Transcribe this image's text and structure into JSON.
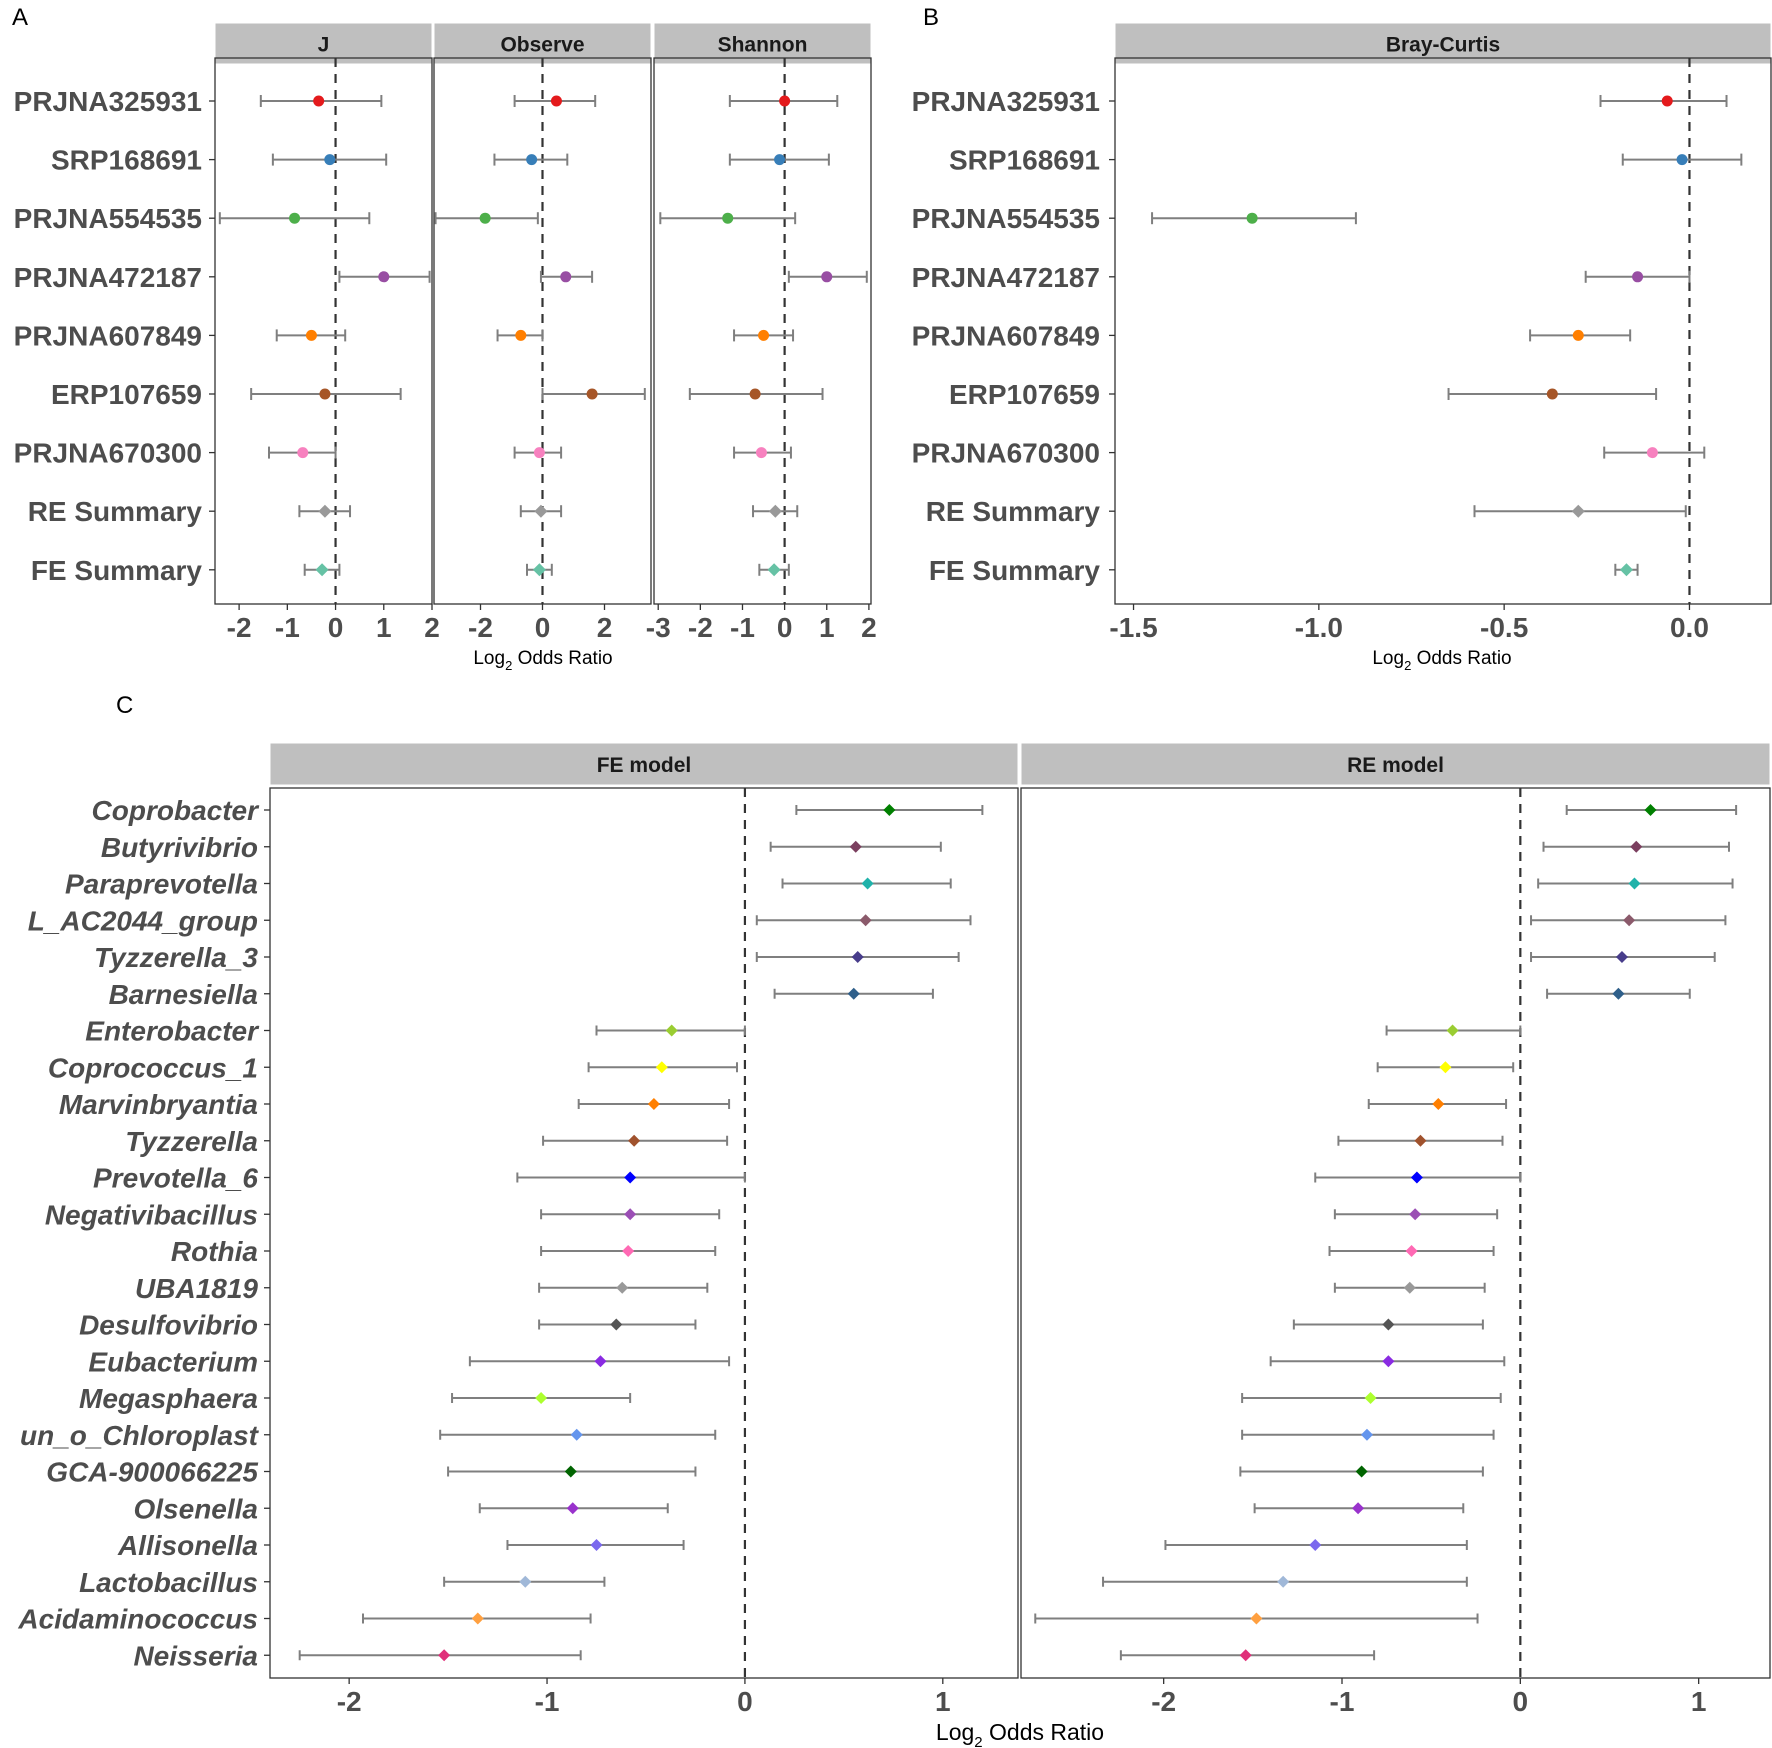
{
  "labels": {
    "panel_a": "A",
    "panel_b": "B",
    "panel_c": "C"
  },
  "xaxis": {
    "title_prefix": "Log",
    "title_sub": "2",
    "title_suffix": " Odds Ratio"
  },
  "chart_data": [
    {
      "type": "forest",
      "panel": "A",
      "facet": "J",
      "xlim": [
        -2.5,
        2
      ],
      "ticks": [
        -2,
        -1,
        0,
        1,
        2
      ],
      "studies": [
        "PRJNA325931",
        "SRP168691",
        "PRJNA554535",
        "PRJNA472187",
        "PRJNA607849",
        "ERP107659",
        "PRJNA670300",
        "RE Summary",
        "FE Summary"
      ],
      "estimate": [
        -0.35,
        -0.12,
        -0.85,
        1.0,
        -0.5,
        -0.22,
        -0.68,
        -0.22,
        -0.28
      ],
      "lower": [
        -1.55,
        -1.3,
        -2.4,
        0.08,
        -1.22,
        -1.75,
        -1.38,
        -0.75,
        -0.64
      ],
      "upper": [
        0.95,
        1.05,
        0.7,
        1.95,
        0.2,
        1.35,
        0.0,
        0.3,
        0.08
      ],
      "colors": [
        "#e41a1c",
        "#377eb8",
        "#4daf4a",
        "#984ea3",
        "#ff7f00",
        "#a65628",
        "#f781bf",
        "#999999",
        "#66c2a5"
      ],
      "shapes": [
        "circle",
        "circle",
        "circle",
        "circle",
        "circle",
        "circle",
        "circle",
        "diamond",
        "diamond"
      ]
    },
    {
      "type": "forest",
      "panel": "A",
      "facet": "Observe",
      "xlim": [
        -3.5,
        3.5
      ],
      "ticks": [
        -2,
        0,
        2
      ],
      "studies": [
        "PRJNA325931",
        "SRP168691",
        "PRJNA554535",
        "PRJNA472187",
        "PRJNA607849",
        "ERP107659",
        "PRJNA670300",
        "RE Summary",
        "FE Summary"
      ],
      "estimate": [
        0.45,
        -0.35,
        -1.85,
        0.75,
        -0.7,
        1.6,
        -0.1,
        -0.05,
        -0.1
      ],
      "lower": [
        -0.9,
        -1.55,
        -3.45,
        -0.05,
        -1.45,
        0.0,
        -0.9,
        -0.7,
        -0.5
      ],
      "upper": [
        1.7,
        0.8,
        -0.15,
        1.6,
        0.0,
        3.3,
        0.6,
        0.6,
        0.3
      ],
      "colors": [
        "#e41a1c",
        "#377eb8",
        "#4daf4a",
        "#984ea3",
        "#ff7f00",
        "#a65628",
        "#f781bf",
        "#999999",
        "#66c2a5"
      ],
      "shapes": [
        "circle",
        "circle",
        "circle",
        "circle",
        "circle",
        "circle",
        "circle",
        "diamond",
        "diamond"
      ]
    },
    {
      "type": "forest",
      "panel": "A",
      "facet": "Shannon",
      "xlim": [
        -3.1,
        2.05
      ],
      "ticks": [
        -3,
        -2,
        -1,
        0,
        1,
        2
      ],
      "studies": [
        "PRJNA325931",
        "SRP168691",
        "PRJNA554535",
        "PRJNA472187",
        "PRJNA607849",
        "ERP107659",
        "PRJNA670300",
        "RE Summary",
        "FE Summary"
      ],
      "estimate": [
        0.0,
        -0.12,
        -1.35,
        1.0,
        -0.5,
        -0.7,
        -0.55,
        -0.22,
        -0.25
      ],
      "lower": [
        -1.3,
        -1.3,
        -2.95,
        0.1,
        -1.2,
        -2.25,
        -1.2,
        -0.75,
        -0.6
      ],
      "upper": [
        1.25,
        1.05,
        0.25,
        1.95,
        0.2,
        0.9,
        0.15,
        0.3,
        0.1
      ],
      "colors": [
        "#e41a1c",
        "#377eb8",
        "#4daf4a",
        "#984ea3",
        "#ff7f00",
        "#a65628",
        "#f781bf",
        "#999999",
        "#66c2a5"
      ],
      "shapes": [
        "circle",
        "circle",
        "circle",
        "circle",
        "circle",
        "circle",
        "circle",
        "diamond",
        "diamond"
      ]
    },
    {
      "type": "forest",
      "panel": "B",
      "facet": "Bray-Curtis",
      "xlim": [
        -1.55,
        0.22
      ],
      "ticks": [
        -1.5,
        -1.0,
        -0.5,
        0.0
      ],
      "tick_labels": [
        "-1.5",
        "-1.0",
        "-0.5",
        "0.0"
      ],
      "studies": [
        "PRJNA325931",
        "SRP168691",
        "PRJNA554535",
        "PRJNA472187",
        "PRJNA607849",
        "ERP107659",
        "PRJNA670300",
        "RE Summary",
        "FE Summary"
      ],
      "estimate": [
        -0.06,
        -0.02,
        -1.18,
        -0.14,
        -0.3,
        -0.37,
        -0.1,
        -0.3,
        -0.17
      ],
      "lower": [
        -0.24,
        -0.18,
        -1.45,
        -0.28,
        -0.43,
        -0.65,
        -0.23,
        -0.58,
        -0.2
      ],
      "upper": [
        0.1,
        0.14,
        -0.9,
        0.0,
        -0.16,
        -0.09,
        0.04,
        -0.01,
        -0.14
      ],
      "colors": [
        "#e41a1c",
        "#377eb8",
        "#4daf4a",
        "#984ea3",
        "#ff7f00",
        "#a65628",
        "#f781bf",
        "#999999",
        "#66c2a5"
      ],
      "shapes": [
        "circle",
        "circle",
        "circle",
        "circle",
        "circle",
        "circle",
        "circle",
        "diamond",
        "diamond"
      ]
    },
    {
      "type": "forest",
      "panel": "C",
      "facet": "FE model",
      "xlim": [
        -2.4,
        1.38
      ],
      "ticks": [
        -2,
        -1,
        0,
        1
      ],
      "genera": [
        "Coprobacter",
        "Butyrivibrio",
        "Paraprevotella",
        "L_AC2044_group",
        "Tyzzerella_3",
        "Barnesiella",
        "Enterobacter",
        "Coprococcus_1",
        "Marvinbryantia",
        "Tyzzerella",
        "Prevotella_6",
        "Negativibacillus",
        "Rothia",
        "UBA1819",
        "Desulfovibrio",
        "Eubacterium",
        "Megasphaera",
        "un_o_Chloroplast",
        "GCA-900066225",
        "Olsenella",
        "Allisonella",
        "Lactobacillus",
        "Acidaminococcus",
        "Neisseria"
      ],
      "estimate": [
        0.73,
        0.56,
        0.62,
        0.61,
        0.57,
        0.55,
        -0.37,
        -0.42,
        -0.46,
        -0.56,
        -0.58,
        -0.58,
        -0.59,
        -0.62,
        -0.65,
        -0.73,
        -1.03,
        -0.85,
        -0.88,
        -0.87,
        -0.75,
        -1.11,
        -1.35,
        -1.52
      ],
      "lower": [
        0.26,
        0.13,
        0.19,
        0.06,
        0.06,
        0.15,
        -0.75,
        -0.79,
        -0.84,
        -1.02,
        -1.15,
        -1.03,
        -1.03,
        -1.04,
        -1.04,
        -1.39,
        -1.48,
        -1.54,
        -1.5,
        -1.34,
        -1.2,
        -1.52,
        -1.93,
        -2.25
      ],
      "upper": [
        1.2,
        0.99,
        1.04,
        1.14,
        1.08,
        0.95,
        0.0,
        -0.04,
        -0.08,
        -0.09,
        0.0,
        -0.13,
        -0.15,
        -0.19,
        -0.25,
        -0.08,
        -0.58,
        -0.15,
        -0.25,
        -0.39,
        -0.31,
        -0.71,
        -0.78,
        -0.83
      ],
      "colors": [
        "#008000",
        "#7b3f5f",
        "#20b2aa",
        "#8b5a6b",
        "#483d8b",
        "#2f5f8a",
        "#9acd32",
        "#ffff00",
        "#ff7f00",
        "#a0522d",
        "#0000ff",
        "#9b4fb5",
        "#ff69b4",
        "#999999",
        "#555555",
        "#8a2be2",
        "#adff2f",
        "#6495ed",
        "#006400",
        "#9932cc",
        "#7b68ee",
        "#a0b8d8",
        "#ffa040",
        "#e0307a"
      ],
      "shapes": "diamond"
    },
    {
      "type": "forest",
      "panel": "C",
      "facet": "RE model",
      "xlim": [
        -2.8,
        1.4
      ],
      "ticks": [
        -2,
        -1,
        0,
        1
      ],
      "genera": [
        "Coprobacter",
        "Butyrivibrio",
        "Paraprevotella",
        "L_AC2044_group",
        "Tyzzerella_3",
        "Barnesiella",
        "Enterobacter",
        "Coprococcus_1",
        "Marvinbryantia",
        "Tyzzerella",
        "Prevotella_6",
        "Negativibacillus",
        "Rothia",
        "UBA1819",
        "Desulfovibrio",
        "Eubacterium",
        "Megasphaera",
        "un_o_Chloroplast",
        "GCA-900066225",
        "Olsenella",
        "Allisonella",
        "Lactobacillus",
        "Acidaminococcus",
        "Neisseria"
      ],
      "estimate": [
        0.73,
        0.65,
        0.64,
        0.61,
        0.57,
        0.55,
        -0.38,
        -0.42,
        -0.46,
        -0.56,
        -0.58,
        -0.59,
        -0.61,
        -0.62,
        -0.74,
        -0.74,
        -0.84,
        -0.86,
        -0.89,
        -0.91,
        -1.15,
        -1.33,
        -1.48,
        -1.54
      ],
      "lower": [
        0.26,
        0.13,
        0.1,
        0.06,
        0.06,
        0.15,
        -0.75,
        -0.8,
        -0.85,
        -1.02,
        -1.15,
        -1.04,
        -1.07,
        -1.04,
        -1.27,
        -1.4,
        -1.56,
        -1.56,
        -1.57,
        -1.49,
        -1.99,
        -2.34,
        -2.72,
        -2.24
      ],
      "upper": [
        1.21,
        1.17,
        1.19,
        1.15,
        1.09,
        0.95,
        0.0,
        -0.04,
        -0.08,
        -0.1,
        0.0,
        -0.13,
        -0.15,
        -0.2,
        -0.21,
        -0.09,
        -0.11,
        -0.15,
        -0.21,
        -0.32,
        -0.3,
        -0.3,
        -0.24,
        -0.82
      ],
      "colors": [
        "#008000",
        "#7b3f5f",
        "#20b2aa",
        "#8b5a6b",
        "#483d8b",
        "#2f5f8a",
        "#9acd32",
        "#ffff00",
        "#ff7f00",
        "#a0522d",
        "#0000ff",
        "#9b4fb5",
        "#ff69b4",
        "#999999",
        "#555555",
        "#8a2be2",
        "#adff2f",
        "#6495ed",
        "#006400",
        "#9932cc",
        "#7b68ee",
        "#a0b8d8",
        "#ffa040",
        "#e0307a"
      ],
      "shapes": "diamond"
    }
  ]
}
